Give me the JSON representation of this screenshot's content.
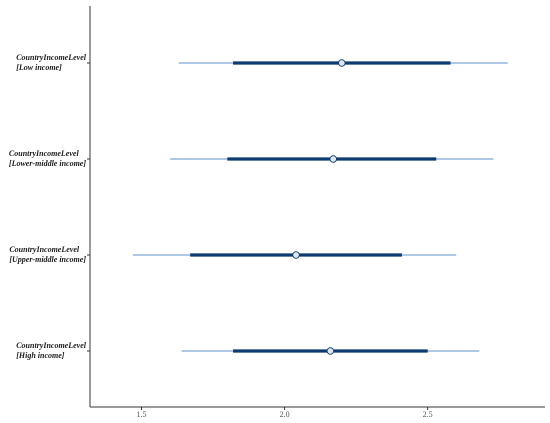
{
  "chart_data": {
    "type": "forest",
    "title": "",
    "xlabel": "",
    "ylabel": "",
    "xlim": [
      1.32,
      2.91
    ],
    "xticks": [
      1.5,
      2.0,
      2.5
    ],
    "xtick_labels": [
      "1.5",
      "2.0",
      "2.5"
    ],
    "grid": false,
    "categories": [
      {
        "line1": "CountryIncomeLevel",
        "line2": "[Low income]"
      },
      {
        "line1": "CountryIncomeLevel",
        "line2": "[Lower-middle income]"
      },
      {
        "line1": "CountryIncomeLevel",
        "line2": "[Upper-middle income]"
      },
      {
        "line1": "CountryIncomeLevel",
        "line2": "[High income]"
      }
    ],
    "estimates": [
      {
        "point": 2.2,
        "inner_low": 1.82,
        "inner_high": 2.58,
        "outer_low": 1.63,
        "outer_high": 2.78
      },
      {
        "point": 2.17,
        "inner_low": 1.8,
        "inner_high": 2.53,
        "outer_low": 1.6,
        "outer_high": 2.73
      },
      {
        "point": 2.04,
        "inner_low": 1.67,
        "inner_high": 2.41,
        "outer_low": 1.47,
        "outer_high": 2.6
      },
      {
        "point": 2.16,
        "inner_low": 1.82,
        "inner_high": 2.5,
        "outer_low": 1.64,
        "outer_high": 2.68
      }
    ],
    "colors": {
      "inner": "#0d3b6e",
      "outer": "#5b8fc9",
      "point_fill": "#dfe6ee",
      "point_stroke": "#0d3b6e",
      "axis": "#333333"
    }
  }
}
